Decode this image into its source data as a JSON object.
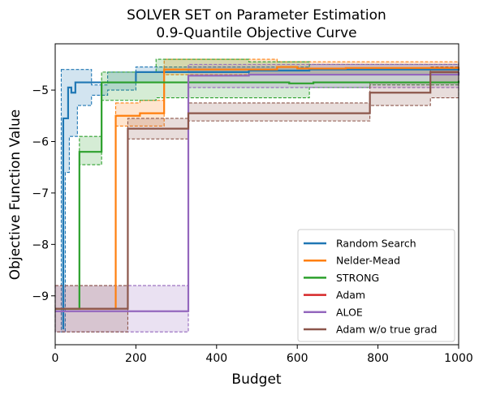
{
  "chart_data": {
    "type": "line",
    "title_line1": "SOLVER SET on Parameter Estimation",
    "title_line2": "0.9-Quantile Objective Curve",
    "xlabel": "Budget",
    "ylabel": "Objective Function Value",
    "xlim": [
      0,
      1000
    ],
    "ylim": [
      -9.95,
      -4.1
    ],
    "x_ticks": [
      0,
      200,
      400,
      600,
      800,
      1000
    ],
    "y_ticks": [
      -9,
      -8,
      -7,
      -6,
      -5
    ],
    "grid": false,
    "legend_position": "lower-right",
    "series": [
      {
        "name": "Random Search",
        "color": "#1f77b4",
        "steps": [
          [
            20,
            -9.65
          ],
          [
            20,
            -5.55
          ],
          [
            32,
            -4.95
          ],
          [
            40,
            -5.05
          ],
          [
            50,
            -4.85
          ],
          [
            130,
            -4.85
          ],
          [
            200,
            -4.65
          ],
          [
            480,
            -4.62
          ],
          [
            630,
            -4.6
          ],
          [
            1000,
            -4.58
          ]
        ],
        "band": [
          [
            15,
            -9.7,
            -4.6
          ],
          [
            25,
            -6.6,
            -4.6
          ],
          [
            35,
            -5.9,
            -4.6
          ],
          [
            50,
            -5.9,
            -4.6
          ],
          [
            55,
            -5.3,
            -4.6
          ],
          [
            90,
            -5.1,
            -4.9
          ],
          [
            130,
            -5.0,
            -4.65
          ],
          [
            200,
            -4.85,
            -4.55
          ],
          [
            270,
            -4.65,
            -4.55
          ],
          [
            480,
            -4.7,
            -4.55
          ],
          [
            630,
            -4.7,
            -4.5
          ],
          [
            1000,
            -4.7,
            -4.5
          ]
        ]
      },
      {
        "name": "Nelder-Mead",
        "color": "#ff7f0e",
        "steps": [
          [
            0,
            -9.25
          ],
          [
            150,
            -9.25
          ],
          [
            150,
            -5.5
          ],
          [
            210,
            -5.45
          ],
          [
            270,
            -4.6
          ],
          [
            550,
            -4.55
          ],
          [
            600,
            -4.58
          ],
          [
            720,
            -4.57
          ],
          [
            1000,
            -4.55
          ]
        ],
        "band": [
          [
            150,
            -5.7,
            -5.25
          ],
          [
            210,
            -5.7,
            -5.2
          ],
          [
            270,
            -4.7,
            -4.4
          ],
          [
            550,
            -4.7,
            -4.45
          ],
          [
            1000,
            -4.65,
            -4.45
          ]
        ]
      },
      {
        "name": "STRONG",
        "color": "#2ca02c",
        "steps": [
          [
            0,
            -9.25
          ],
          [
            60,
            -9.25
          ],
          [
            60,
            -6.2
          ],
          [
            115,
            -4.85
          ],
          [
            580,
            -4.87
          ],
          [
            640,
            -4.85
          ],
          [
            1000,
            -4.82
          ]
        ],
        "band": [
          [
            60,
            -6.45,
            -5.9
          ],
          [
            115,
            -5.2,
            -4.65
          ],
          [
            250,
            -5.15,
            -4.4
          ],
          [
            480,
            -5.15,
            -4.45
          ],
          [
            630,
            -4.95,
            -4.6
          ],
          [
            730,
            -4.95,
            -4.6
          ],
          [
            780,
            -4.9,
            -4.6
          ],
          [
            1000,
            -4.88,
            -4.6
          ]
        ]
      },
      {
        "name": "Adam",
        "color": "#d62728",
        "steps": [],
        "band": []
      },
      {
        "name": "ALOE",
        "color": "#9467bd",
        "steps": [
          [
            0,
            -9.3
          ],
          [
            330,
            -9.3
          ],
          [
            330,
            -4.72
          ],
          [
            480,
            -4.7
          ],
          [
            1000,
            -4.65
          ]
        ],
        "band": [
          [
            0,
            -9.7,
            -8.8
          ],
          [
            330,
            -4.95,
            -4.5
          ],
          [
            1000,
            -4.9,
            -4.45
          ]
        ]
      },
      {
        "name": "Adam w/o true grad",
        "color": "#8c564b",
        "steps": [
          [
            0,
            -9.25
          ],
          [
            180,
            -9.25
          ],
          [
            180,
            -5.75
          ],
          [
            330,
            -5.45
          ],
          [
            780,
            -5.05
          ],
          [
            930,
            -4.65
          ],
          [
            1000,
            -4.65
          ]
        ],
        "band": [
          [
            0,
            -9.7,
            -8.8
          ],
          [
            180,
            -5.95,
            -5.55
          ],
          [
            330,
            -5.6,
            -5.25
          ],
          [
            780,
            -5.3,
            -4.85
          ],
          [
            930,
            -5.15,
            -4.55
          ],
          [
            1000,
            -5.15,
            -4.55
          ]
        ]
      }
    ]
  }
}
